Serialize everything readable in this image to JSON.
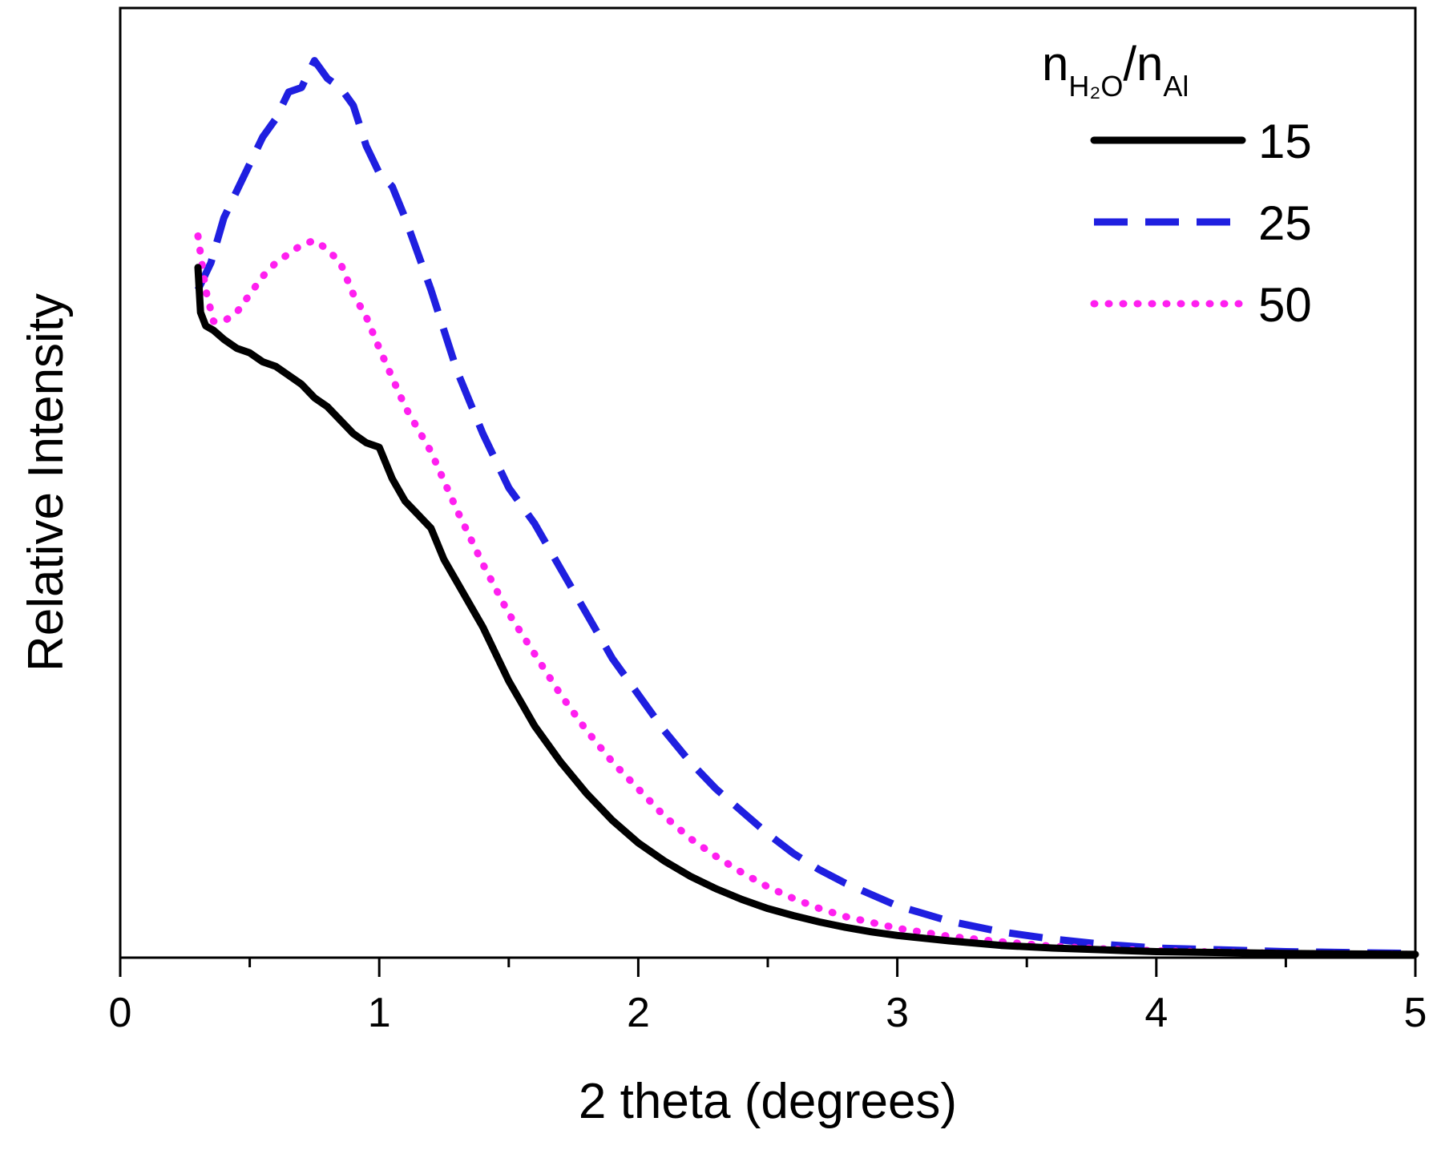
{
  "chart_data": {
    "type": "line",
    "title": "",
    "xlabel": "2 theta (degrees)",
    "ylabel": "Relative Intensity",
    "xlim": [
      0,
      5
    ],
    "ylim": [
      0,
      1
    ],
    "xticks": [
      0,
      1,
      2,
      3,
      4,
      5
    ],
    "xtick_labels": [
      "0",
      "1",
      "2",
      "3",
      "4",
      "5"
    ],
    "grid": false,
    "legend": {
      "position": "top-right",
      "title": {
        "n1": "n",
        "sub1": "H₂O",
        "slash": "/",
        "n2": "n",
        "sub2": "Al"
      }
    },
    "series": [
      {
        "name": "15",
        "color": "#000000",
        "style": "solid",
        "x": [
          0.3,
          0.31,
          0.33,
          0.36,
          0.4,
          0.45,
          0.5,
          0.55,
          0.6,
          0.65,
          0.7,
          0.75,
          0.8,
          0.85,
          0.9,
          0.95,
          1.0,
          1.05,
          1.1,
          1.15,
          1.2,
          1.25,
          1.3,
          1.35,
          1.4,
          1.45,
          1.5,
          1.55,
          1.6,
          1.7,
          1.8,
          1.9,
          2.0,
          2.1,
          2.2,
          2.3,
          2.4,
          2.5,
          2.6,
          2.7,
          2.8,
          2.9,
          3.0,
          3.2,
          3.4,
          3.6,
          3.8,
          4.0,
          4.5,
          5.0
        ],
        "y": [
          0.765,
          0.715,
          0.7,
          0.695,
          0.685,
          0.675,
          0.67,
          0.66,
          0.655,
          0.645,
          0.635,
          0.62,
          0.61,
          0.595,
          0.58,
          0.57,
          0.565,
          0.53,
          0.505,
          0.49,
          0.475,
          0.44,
          0.415,
          0.39,
          0.365,
          0.335,
          0.305,
          0.28,
          0.255,
          0.215,
          0.18,
          0.15,
          0.125,
          0.105,
          0.088,
          0.074,
          0.062,
          0.052,
          0.044,
          0.037,
          0.031,
          0.026,
          0.022,
          0.016,
          0.011,
          0.008,
          0.006,
          0.004,
          0.002,
          0.001
        ]
      },
      {
        "name": "25",
        "color": "#1f1fe0",
        "style": "dashed",
        "x": [
          0.3,
          0.35,
          0.4,
          0.45,
          0.5,
          0.55,
          0.6,
          0.65,
          0.7,
          0.75,
          0.8,
          0.85,
          0.9,
          0.95,
          1.0,
          1.05,
          1.1,
          1.2,
          1.3,
          1.4,
          1.5,
          1.6,
          1.7,
          1.8,
          1.9,
          2.0,
          2.1,
          2.2,
          2.3,
          2.4,
          2.5,
          2.6,
          2.7,
          2.8,
          3.0,
          3.2,
          3.4,
          3.6,
          3.8,
          4.0,
          4.5,
          5.0
        ],
        "y": [
          0.74,
          0.77,
          0.82,
          0.85,
          0.88,
          0.91,
          0.93,
          0.96,
          0.965,
          0.995,
          0.975,
          0.965,
          0.945,
          0.9,
          0.87,
          0.855,
          0.82,
          0.74,
          0.65,
          0.58,
          0.52,
          0.48,
          0.43,
          0.38,
          0.33,
          0.29,
          0.25,
          0.215,
          0.185,
          0.16,
          0.135,
          0.113,
          0.095,
          0.08,
          0.055,
          0.038,
          0.026,
          0.018,
          0.012,
          0.008,
          0.004,
          0.002
        ]
      },
      {
        "name": "50",
        "color": "#ff1ff0",
        "style": "dotted",
        "x": [
          0.3,
          0.33,
          0.36,
          0.4,
          0.45,
          0.5,
          0.55,
          0.6,
          0.65,
          0.7,
          0.75,
          0.8,
          0.85,
          0.9,
          0.95,
          1.0,
          1.1,
          1.2,
          1.3,
          1.4,
          1.5,
          1.6,
          1.7,
          1.8,
          1.9,
          2.0,
          2.1,
          2.2,
          2.3,
          2.4,
          2.5,
          2.6,
          2.7,
          2.8,
          3.0,
          3.2,
          3.4,
          3.6,
          3.8,
          4.0,
          4.5,
          5.0
        ],
        "y": [
          0.8,
          0.74,
          0.705,
          0.705,
          0.715,
          0.735,
          0.755,
          0.77,
          0.78,
          0.79,
          0.795,
          0.785,
          0.77,
          0.735,
          0.71,
          0.675,
          0.61,
          0.56,
          0.495,
          0.435,
          0.38,
          0.335,
          0.29,
          0.25,
          0.215,
          0.185,
          0.155,
          0.13,
          0.11,
          0.092,
          0.076,
          0.063,
          0.052,
          0.043,
          0.03,
          0.021,
          0.015,
          0.01,
          0.007,
          0.005,
          0.002,
          0.001
        ]
      }
    ]
  }
}
